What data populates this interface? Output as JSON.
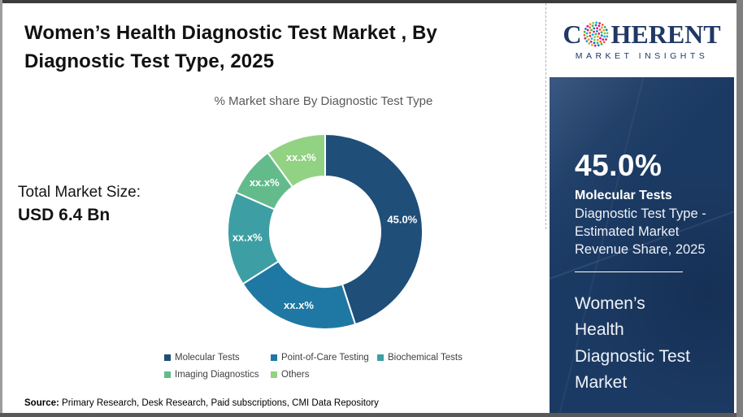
{
  "header": {
    "title": "Women’s Health Diagnostic Test Market , By\nDiagnostic Test Type, 2025"
  },
  "brand": {
    "logo_text_start": "C",
    "logo_text_end": "HERENT",
    "logo_subtext": "MARKET INSIGHTS",
    "logo_color": "#1f3864",
    "globe_dot_colors": [
      "#39b54a",
      "#0f75bc",
      "#ec008c",
      "#f7941d",
      "#8dc63f",
      "#00aeef",
      "#da1c5c",
      "#f15a29"
    ]
  },
  "market_size": {
    "label": "Total Market Size:",
    "value": "USD 6.4 Bn"
  },
  "chart_data": {
    "type": "pie",
    "donut": true,
    "subtitle": "% Market share By Diagnostic Test Type",
    "start_angle_deg": 0,
    "legend_position": "bottom",
    "segments": [
      {
        "name": "Molecular Tests",
        "value": 45.0,
        "display_label": "45.0%",
        "color": "#1f4e79"
      },
      {
        "name": "Point-of-Care Testing",
        "value": 21.0,
        "display_label": "xx.x%",
        "color": "#1f78a4"
      },
      {
        "name": "Biochemical Tests",
        "value": 15.6,
        "display_label": "xx.x%",
        "color": "#3d9fa3"
      },
      {
        "name": "Imaging Diagnostics",
        "value": 8.4,
        "display_label": "xx.x%",
        "color": "#63bb8b"
      },
      {
        "name": "Others",
        "value": 10.0,
        "display_label": "xx.x%",
        "color": "#92d283"
      }
    ]
  },
  "sidebar": {
    "headline_value": "45.0%",
    "headline_label": "Molecular Tests",
    "description": "Diagnostic Test Type -\nEstimated Market\nRevenue Share, 2025",
    "market_name": "Women’s\nHealth\nDiagnostic Test\nMarket"
  },
  "source": {
    "label": "Source:",
    "text": " Primary Research, Desk Research, Paid subscriptions, CMI Data Repository"
  }
}
